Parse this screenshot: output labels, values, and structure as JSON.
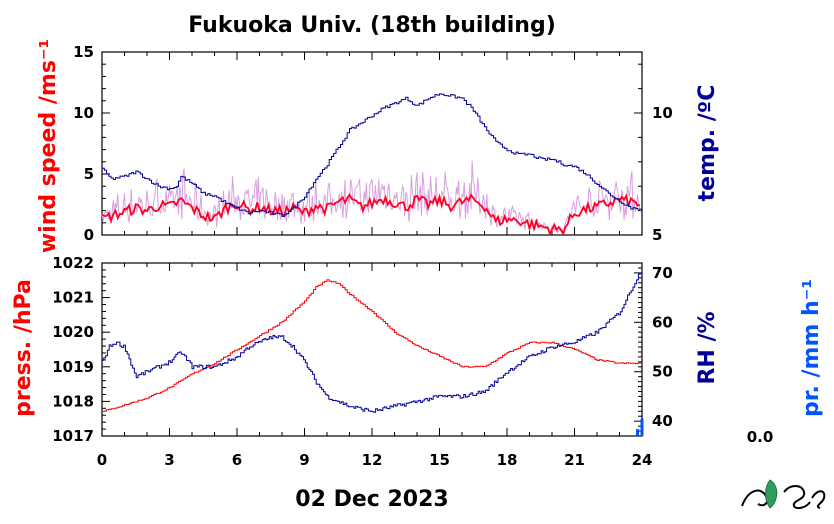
{
  "title": "Fukuoka Univ. (18th building)",
  "date_label": "02 Dec 2023",
  "rain_value_label": "0.0",
  "colors": {
    "wind": "#ff0022",
    "wind_gust": "#d9a0e0",
    "temp": "#000099",
    "press": "#ff0000",
    "rh": "#000099",
    "rain": "#0055ff"
  },
  "chart_data": [
    {
      "type": "line",
      "panel": "top",
      "xlim": [
        0,
        24
      ],
      "xticks": [
        0,
        3,
        6,
        9,
        12,
        15,
        18,
        21,
        24
      ],
      "left_axis": {
        "label": "wind speed /ms⁻¹",
        "ylim": [
          0,
          15
        ],
        "ticks": [
          0,
          5,
          10,
          15
        ]
      },
      "right_axis": {
        "label": "temp. /ºC",
        "ylim": [
          5,
          12.5
        ],
        "ticks": [
          5,
          10
        ]
      },
      "series": [
        {
          "key": "wind",
          "axis": "left",
          "x": [
            0,
            0.5,
            1,
            1.5,
            2,
            2.5,
            3,
            3.5,
            4,
            4.5,
            5,
            5.5,
            6,
            6.5,
            7,
            7.5,
            8,
            8.5,
            9,
            9.5,
            10,
            10.5,
            11,
            11.5,
            12,
            12.5,
            13,
            13.5,
            14,
            14.5,
            15,
            15.5,
            16,
            16.5,
            17,
            17.5,
            18,
            18.5,
            19,
            19.5,
            20,
            20.5,
            21,
            21.5,
            22,
            22.5,
            23,
            23.5,
            24
          ],
          "y": [
            1.3,
            1.6,
            1.9,
            2.2,
            2.0,
            2.4,
            2.3,
            2.8,
            2.2,
            1.6,
            1.3,
            2.2,
            2.6,
            2.1,
            2.3,
            2.0,
            1.9,
            2.2,
            1.8,
            2.4,
            2.1,
            2.7,
            2.9,
            2.3,
            2.6,
            3.0,
            2.7,
            2.3,
            2.9,
            2.5,
            2.8,
            2.4,
            2.7,
            2.9,
            2.4,
            1.1,
            1.3,
            1.2,
            0.9,
            0.7,
            0.5,
            0.4,
            1.8,
            2.1,
            2.3,
            2.6,
            2.9,
            2.7,
            2.5
          ]
        },
        {
          "key": "temp",
          "axis": "right",
          "x": [
            0,
            0.4,
            1,
            1.5,
            2,
            2.5,
            3,
            3.3,
            3.5,
            4,
            4.5,
            5,
            5.5,
            6,
            6.5,
            7,
            7.5,
            8,
            8.5,
            9,
            9.5,
            10,
            10.5,
            11,
            11.5,
            12,
            12.5,
            13,
            13.5,
            14,
            14.5,
            15,
            15.5,
            16,
            16.5,
            17,
            17.5,
            18,
            18.5,
            19,
            19.5,
            20,
            20.5,
            21,
            21.5,
            22,
            22.5,
            23,
            23.5,
            24
          ],
          "y": [
            7.7,
            7.3,
            7.4,
            7.6,
            7.3,
            7.0,
            6.9,
            7.0,
            7.4,
            7.1,
            6.7,
            6.6,
            6.3,
            6.1,
            5.9,
            6.0,
            5.9,
            5.8,
            6.1,
            6.6,
            7.3,
            7.9,
            8.6,
            9.3,
            9.6,
            9.9,
            10.2,
            10.4,
            10.6,
            10.3,
            10.6,
            10.8,
            10.7,
            10.6,
            10.1,
            9.4,
            8.8,
            8.5,
            8.3,
            8.3,
            8.1,
            8.1,
            7.9,
            7.8,
            7.5,
            7.1,
            6.7,
            6.4,
            6.1,
            6.1
          ]
        }
      ]
    },
    {
      "type": "line",
      "panel": "bottom",
      "xlim": [
        0,
        24
      ],
      "xticks": [
        0,
        3,
        6,
        9,
        12,
        15,
        18,
        21,
        24
      ],
      "left_axis": {
        "label": "press. /hPa",
        "ylim": [
          1017,
          1022
        ],
        "ticks": [
          1017,
          1018,
          1019,
          1020,
          1021,
          1022
        ]
      },
      "right_axis": {
        "label": "RH /%",
        "ylim": [
          37,
          72
        ],
        "ticks": [
          40,
          50,
          60,
          70
        ]
      },
      "series": [
        {
          "key": "press",
          "axis": "left",
          "x": [
            0,
            1,
            2,
            3,
            4,
            5,
            6,
            7,
            8,
            9,
            9.5,
            10,
            10.5,
            11,
            12,
            13,
            14,
            15,
            16,
            17,
            18,
            19,
            20,
            21,
            22,
            23,
            24
          ],
          "y": [
            1017.7,
            1017.9,
            1018.1,
            1018.4,
            1018.8,
            1019.1,
            1019.5,
            1019.9,
            1020.3,
            1020.9,
            1021.3,
            1021.5,
            1021.4,
            1021.1,
            1020.6,
            1020.0,
            1019.6,
            1019.3,
            1019.0,
            1019.0,
            1019.4,
            1019.7,
            1019.7,
            1019.5,
            1019.2,
            1019.1,
            1019.1
          ]
        },
        {
          "key": "rh",
          "axis": "right",
          "x": [
            0,
            0.3,
            0.6,
            1,
            1.5,
            2,
            3,
            3.5,
            4,
            5,
            6,
            6.5,
            7,
            7.5,
            8,
            8.5,
            9,
            9.5,
            10,
            11,
            12,
            13,
            14,
            15,
            16,
            17,
            18,
            19,
            20,
            21,
            22,
            23,
            24
          ],
          "y": [
            52,
            55,
            56,
            55,
            49,
            50,
            52,
            54,
            51,
            51,
            53,
            55,
            56,
            57,
            57,
            55,
            52,
            48,
            45,
            43,
            42,
            43,
            44,
            45,
            45,
            46,
            50,
            53,
            55,
            56,
            58,
            62,
            71
          ]
        }
      ]
    },
    {
      "type": "bar",
      "panel": "rain",
      "axis_label": "pr. /mm h⁻¹",
      "x": [
        23.8,
        24
      ],
      "values": [
        0.4,
        1.0
      ],
      "ylim": [
        0,
        10
      ]
    }
  ]
}
